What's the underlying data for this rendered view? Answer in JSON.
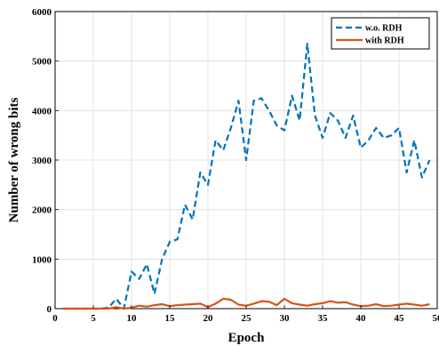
{
  "chart_data": {
    "type": "line",
    "xlabel": "Epoch",
    "ylabel": "Number of wrong bits",
    "xlim": [
      0,
      50
    ],
    "ylim": [
      0,
      6000
    ],
    "xticks": [
      0,
      5,
      10,
      15,
      20,
      25,
      30,
      35,
      40,
      45,
      50
    ],
    "yticks": [
      0,
      1000,
      2000,
      3000,
      4000,
      5000,
      6000
    ],
    "grid": true,
    "legend_position": "top-right",
    "series": [
      {
        "name": "w.o. RDH",
        "color": "#0072BD",
        "style": "dashed",
        "x": [
          1,
          2,
          3,
          4,
          5,
          6,
          7,
          8,
          9,
          10,
          11,
          12,
          13,
          14,
          15,
          16,
          17,
          18,
          19,
          20,
          21,
          22,
          23,
          24,
          25,
          26,
          27,
          28,
          29,
          30,
          31,
          32,
          33,
          34,
          35,
          36,
          37,
          38,
          39,
          40,
          41,
          42,
          43,
          44,
          45,
          46,
          47,
          48,
          49
        ],
        "values": [
          0,
          0,
          0,
          0,
          0,
          0,
          20,
          200,
          0,
          750,
          600,
          900,
          300,
          1000,
          1350,
          1400,
          2100,
          1800,
          2750,
          2500,
          3400,
          3200,
          3650,
          4200,
          3000,
          4200,
          4250,
          4000,
          3700,
          3600,
          4300,
          3800,
          5350,
          3900,
          3450,
          3950,
          3800,
          3450,
          3900,
          3250,
          3400,
          3650,
          3450,
          3500,
          3650,
          2750,
          3400,
          2650,
          3000
        ]
      },
      {
        "name": "with RDH",
        "color": "#D95319",
        "style": "solid",
        "x": [
          1,
          2,
          3,
          4,
          5,
          6,
          7,
          8,
          9,
          10,
          11,
          12,
          13,
          14,
          15,
          16,
          17,
          18,
          19,
          20,
          21,
          22,
          23,
          24,
          25,
          26,
          27,
          28,
          29,
          30,
          31,
          32,
          33,
          34,
          35,
          36,
          37,
          38,
          39,
          40,
          41,
          42,
          43,
          44,
          45,
          46,
          47,
          48,
          49
        ],
        "values": [
          0,
          0,
          0,
          0,
          0,
          0,
          0,
          30,
          0,
          20,
          60,
          40,
          70,
          90,
          50,
          70,
          80,
          90,
          100,
          30,
          100,
          200,
          180,
          80,
          60,
          100,
          150,
          140,
          70,
          200,
          110,
          80,
          60,
          90,
          110,
          150,
          120,
          130,
          80,
          50,
          60,
          90,
          50,
          60,
          80,
          100,
          80,
          60,
          90
        ]
      }
    ]
  }
}
